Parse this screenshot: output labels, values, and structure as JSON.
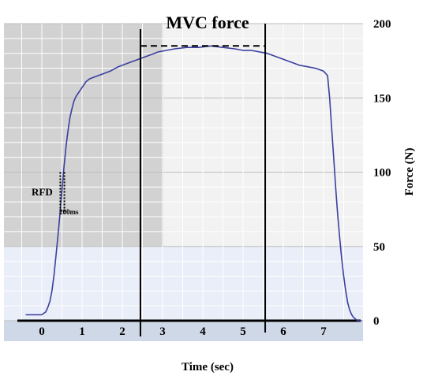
{
  "chart_data": {
    "type": "line",
    "title": "MVC force",
    "xlabel": "Time (sec)",
    "ylabel": "Force (N)",
    "xlim": [
      -0.4,
      7.95
    ],
    "ylim": [
      0,
      200
    ],
    "x_ticks": [
      "0",
      "1",
      "2",
      "3",
      "4",
      "5",
      "6",
      "7"
    ],
    "y_ticks": [
      "0",
      "50",
      "100",
      "150",
      "200"
    ],
    "series": [
      {
        "color": "#3b3f9e",
        "x": [
          -0.4,
          -0.2,
          0.0,
          0.05,
          0.1,
          0.15,
          0.2,
          0.25,
          0.3,
          0.35,
          0.4,
          0.45,
          0.5,
          0.55,
          0.6,
          0.65,
          0.7,
          0.75,
          0.8,
          0.85,
          0.9,
          0.95,
          1.0,
          1.1,
          1.2,
          1.3,
          1.5,
          1.7,
          1.9,
          2.1,
          2.3,
          2.5,
          2.7,
          2.9,
          3.1,
          3.3,
          3.6,
          3.9,
          4.2,
          4.5,
          4.8,
          5.0,
          5.2,
          5.4,
          5.6,
          5.8,
          6.0,
          6.2,
          6.4,
          6.6,
          6.8,
          7.0,
          7.1,
          7.15,
          7.2,
          7.25,
          7.3,
          7.35,
          7.4,
          7.45,
          7.5,
          7.55,
          7.6,
          7.65,
          7.7,
          7.75,
          7.8,
          7.85,
          7.9,
          7.95
        ],
        "y": [
          4,
          4,
          4,
          5,
          6,
          9,
          13,
          20,
          30,
          43,
          57,
          72,
          88,
          103,
          117,
          128,
          137,
          143,
          148,
          151,
          153,
          155,
          157,
          161,
          163,
          164,
          166,
          168,
          171,
          173,
          175,
          177,
          179,
          181,
          182,
          183,
          184,
          184,
          185,
          184,
          183,
          182,
          182,
          181,
          180,
          178,
          176,
          174,
          172,
          171,
          170,
          168,
          165,
          150,
          130,
          110,
          90,
          72,
          56,
          42,
          30,
          20,
          12,
          7,
          4,
          2,
          1,
          0,
          0,
          0
        ]
      }
    ],
    "annotations": {
      "rfd_label": "RFD",
      "rfd_window_label": "200ms",
      "mvc_level": 185,
      "mvc_window": [
        2.45,
        5.55
      ],
      "rfd_window": [
        0.46,
        0.56
      ]
    },
    "grid": true,
    "colors": {
      "line": "#3b3f9e",
      "band_dark": "#d2d2d2",
      "band_light": "#f2f2f2",
      "band_blue": "#e9eef8",
      "grid": "#ffffff"
    }
  }
}
